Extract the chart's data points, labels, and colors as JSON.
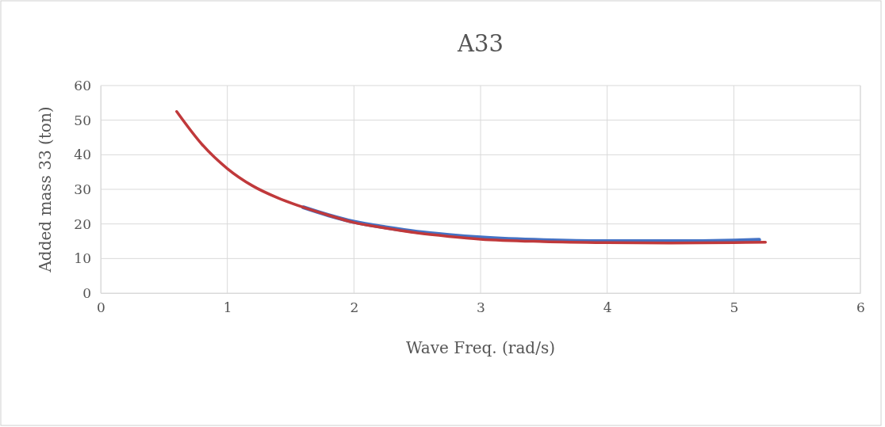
{
  "chart_data": {
    "type": "line",
    "title": "A33",
    "xlabel": "Wave Freq. (rad/s)",
    "ylabel": "Added mass 33 (ton)",
    "xlim": [
      0,
      6
    ],
    "xticks": [
      0,
      1,
      2,
      3,
      4,
      5,
      6
    ],
    "ylim": [
      0,
      60
    ],
    "yticks": [
      0,
      10,
      20,
      30,
      40,
      50,
      60
    ],
    "grid": true,
    "line_style": "solid",
    "marker": "none",
    "series": [
      {
        "color": "#4472c4",
        "x": [
          1.6,
          1.8,
          2.0,
          2.25,
          2.5,
          2.75,
          3.0,
          3.5,
          4.0,
          4.5,
          5.0,
          5.2
        ],
        "values": [
          24.8,
          22.5,
          20.6,
          19,
          17.7,
          16.8,
          16.1,
          15.3,
          15.0,
          15.0,
          15.2,
          15.4
        ]
      },
      {
        "color": "#c0393b",
        "x": [
          0.6,
          0.8,
          1.0,
          1.2,
          1.4,
          1.6,
          1.8,
          2.0,
          2.25,
          2.5,
          2.75,
          3.0,
          3.5,
          4.0,
          4.5,
          5.0,
          5.25
        ],
        "values": [
          52.5,
          43,
          36,
          31,
          27.5,
          24.8,
          22.5,
          20.4,
          18.8,
          17.4,
          16.4,
          15.6,
          14.9,
          14.6,
          14.5,
          14.6,
          14.7
        ]
      }
    ]
  }
}
